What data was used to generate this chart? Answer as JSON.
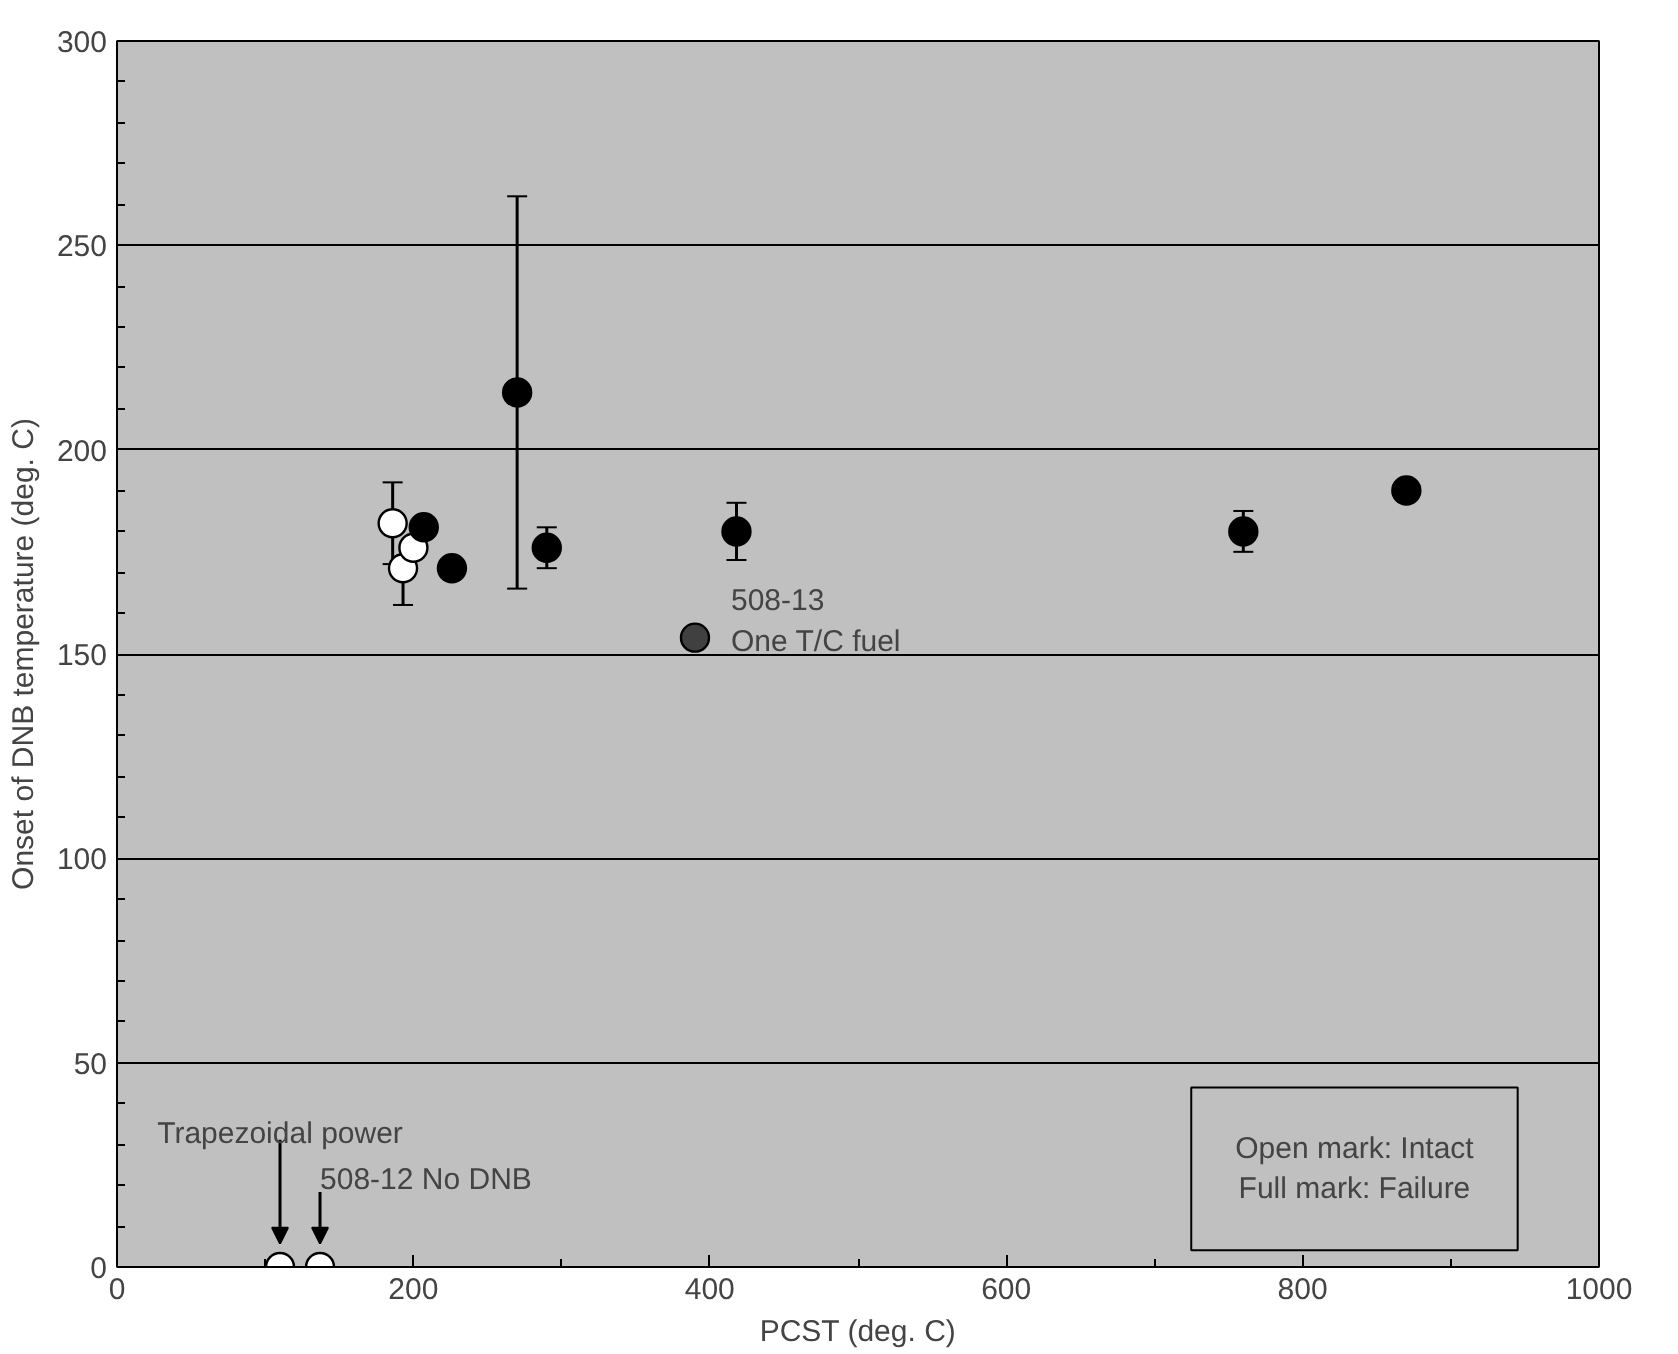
{
  "chart_data": {
    "type": "scatter",
    "xlabel": "PCST (deg. C)",
    "ylabel": "Onset of DNB temperature (deg. C)",
    "xlim": [
      0,
      1000
    ],
    "ylim": [
      0,
      300
    ],
    "xticks": [
      0,
      200,
      400,
      600,
      800,
      1000
    ],
    "yticks": [
      0,
      50,
      100,
      150,
      200,
      250,
      300
    ],
    "grid": "y",
    "marker": "circle",
    "series": [
      {
        "color": "#ffffff",
        "x": [
          186,
          193,
          200,
          110,
          137
        ],
        "values": [
          182,
          171,
          176,
          0,
          0
        ],
        "errors": [
          [
            172,
            192
          ],
          [
            162,
            172
          ],
          null,
          null,
          null
        ]
      },
      {
        "color": "#000000",
        "x": [
          207,
          226,
          270,
          290,
          418,
          760,
          870
        ],
        "values": [
          181,
          171,
          214,
          176,
          180,
          180,
          190
        ],
        "errors": [
          [
            179,
            183
          ],
          null,
          [
            166,
            262
          ],
          [
            171,
            181
          ],
          [
            173,
            187
          ],
          [
            175,
            185
          ],
          null
        ]
      },
      {
        "color": "#404040",
        "x": [
          390
        ],
        "values": [
          154
        ]
      }
    ],
    "annotations": [
      "Trapezoidal power",
      {
        "text": "508-12 No DNB",
        "x": 137,
        "y": 0
      },
      {
        "text": "508-13\nOne T/C fuel",
        "x": 390,
        "y": 154
      },
      "Open mark: Intact\nFull mark: Failure"
    ]
  }
}
